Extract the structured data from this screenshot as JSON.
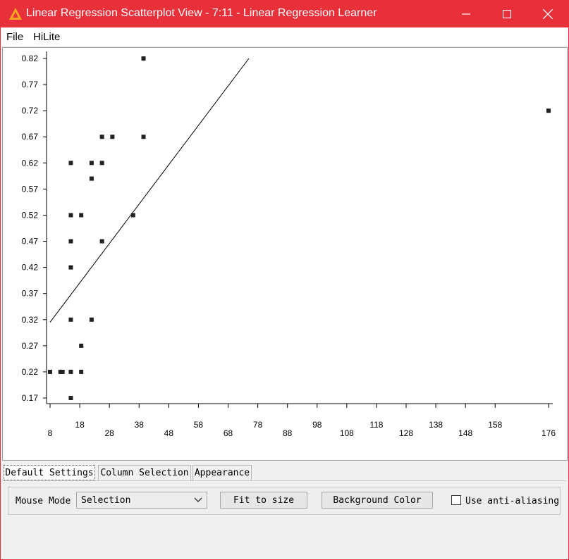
{
  "window": {
    "title": "Linear Regression Scatterplot View - 7:11 - Linear Regression Learner",
    "colors": {
      "titlebar": "#e8303a",
      "icon": "#f5a623"
    }
  },
  "menu": {
    "items": [
      "File",
      "HiLite"
    ]
  },
  "chart_data": {
    "type": "scatter",
    "x_ticks": [
      8,
      18,
      28,
      38,
      48,
      58,
      68,
      78,
      88,
      98,
      108,
      118,
      128,
      138,
      148,
      158,
      176
    ],
    "y_ticks": [
      "0.82",
      "0.77",
      "0.72",
      "0.67",
      "0.62",
      "0.57",
      "0.52",
      "0.47",
      "0.42",
      "0.37",
      "0.32",
      "0.27",
      "0.22",
      "0.17"
    ],
    "xlim": [
      8,
      176
    ],
    "ylim": [
      0.17,
      0.82
    ],
    "grid": false,
    "points": [
      {
        "x": 8,
        "y": 0.22
      },
      {
        "x": 11.5,
        "y": 0.22
      },
      {
        "x": 12.2,
        "y": 0.22
      },
      {
        "x": 15,
        "y": 0.22
      },
      {
        "x": 15,
        "y": 0.17
      },
      {
        "x": 15,
        "y": 0.32
      },
      {
        "x": 15,
        "y": 0.42
      },
      {
        "x": 15,
        "y": 0.47
      },
      {
        "x": 15,
        "y": 0.52
      },
      {
        "x": 15,
        "y": 0.62
      },
      {
        "x": 18.5,
        "y": 0.22
      },
      {
        "x": 18.5,
        "y": 0.27
      },
      {
        "x": 18.5,
        "y": 0.52
      },
      {
        "x": 22,
        "y": 0.32
      },
      {
        "x": 22,
        "y": 0.59
      },
      {
        "x": 22,
        "y": 0.62
      },
      {
        "x": 25.5,
        "y": 0.47
      },
      {
        "x": 25.5,
        "y": 0.62
      },
      {
        "x": 25.5,
        "y": 0.67
      },
      {
        "x": 29,
        "y": 0.67
      },
      {
        "x": 36,
        "y": 0.52
      },
      {
        "x": 39.5,
        "y": 0.67
      },
      {
        "x": 39.5,
        "y": 0.82
      },
      {
        "x": 176,
        "y": 0.72
      }
    ],
    "regression_line": {
      "x": [
        8,
        75
      ],
      "y": [
        0.315,
        0.82
      ]
    }
  },
  "tabs": [
    {
      "label": "Default Settings",
      "active": true
    },
    {
      "label": "Column Selection",
      "active": false
    },
    {
      "label": "Appearance",
      "active": false
    }
  ],
  "settings": {
    "mouse_mode_label": "Mouse Mode",
    "mouse_mode_value": "Selection",
    "fit_button": "Fit to size",
    "background_button": "Background Color",
    "antialias_label": "Use anti-aliasing",
    "antialias_checked": false
  }
}
